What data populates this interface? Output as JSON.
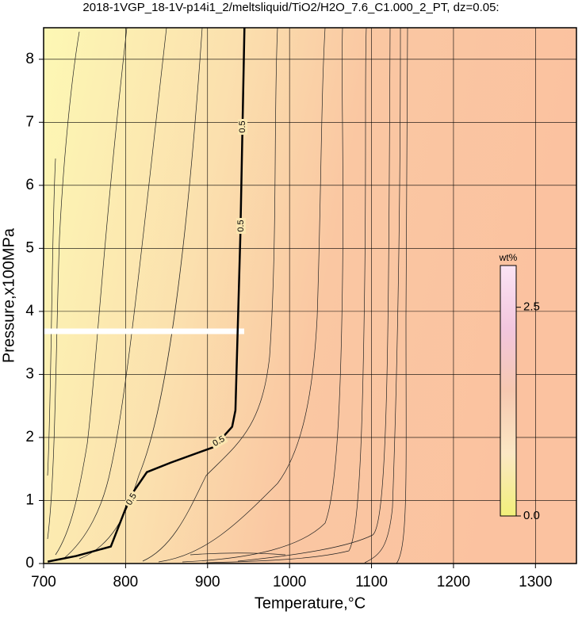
{
  "chart_data": {
    "type": "contour",
    "title": "2018-1VGP_18-1V-p14i1_2/meltsliquid/TiO2/H2O_7.6_C1.000_2_PT, dz=0.05:",
    "xlabel": "Temperature,°C",
    "ylabel": "Pressure,x100MPa",
    "xlim": [
      700,
      1350
    ],
    "ylim": [
      0,
      8.5
    ],
    "xticks": [
      700,
      800,
      900,
      1000,
      1100,
      1200,
      1300
    ],
    "yticks": [
      0,
      1,
      2,
      3,
      4,
      5,
      6,
      7,
      8
    ],
    "grid": true,
    "contours": [
      {
        "level": 0.5,
        "label": "0.5",
        "x": [
          705,
          740,
          782,
          806,
          826,
          855,
          908,
          930,
          934,
          940,
          945
        ],
        "y": [
          0.03,
          0.12,
          0.27,
          1.07,
          1.45,
          1.6,
          1.85,
          2.17,
          2.43,
          5.2,
          8.5
        ]
      }
    ],
    "colorbar": {
      "label": "wt%",
      "lim": [
        0,
        3.0
      ],
      "ticks": [
        {
          "value": 0,
          "label": "0.0"
        },
        2.5
      ]
    }
  }
}
